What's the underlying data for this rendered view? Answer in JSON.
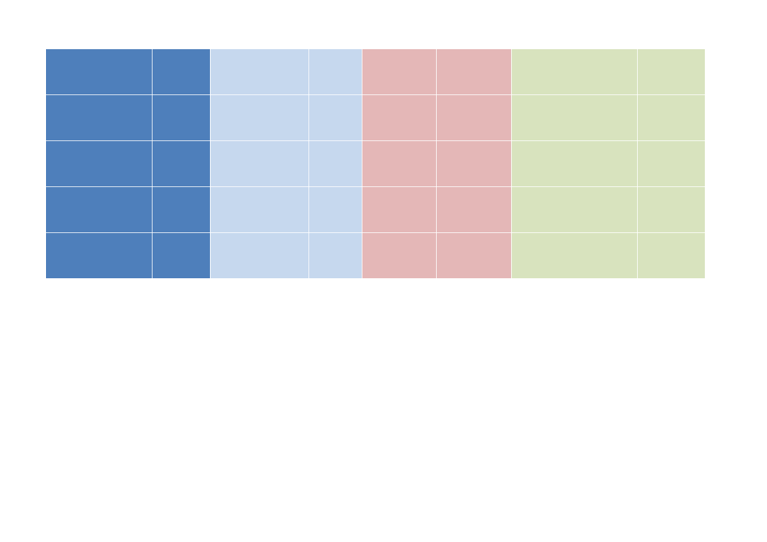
{
  "table": {
    "rows": 5,
    "column_groups": [
      {
        "color": "#4e7fbb",
        "columns": 2
      },
      {
        "color": "#c6d8ee",
        "columns": 2
      },
      {
        "color": "#e4b7b7",
        "columns": 2
      },
      {
        "color": "#d8e3be",
        "columns": 2
      }
    ],
    "cells": [
      [
        "",
        "",
        "",
        "",
        "",
        "",
        "",
        ""
      ],
      [
        "",
        "",
        "",
        "",
        "",
        "",
        "",
        ""
      ],
      [
        "",
        "",
        "",
        "",
        "",
        "",
        "",
        ""
      ],
      [
        "",
        "",
        "",
        "",
        "",
        "",
        "",
        ""
      ],
      [
        "",
        "",
        "",
        "",
        "",
        "",
        "",
        ""
      ]
    ]
  }
}
